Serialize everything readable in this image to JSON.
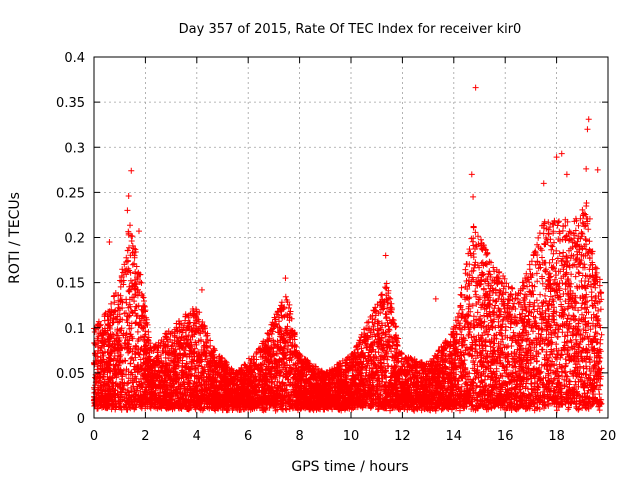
{
  "chart_data": {
    "type": "scatter",
    "title": "Day 357 of 2015, Rate Of TEC Index for receiver kir0",
    "xlabel": "GPS time / hours",
    "ylabel": "ROTI / TECUs",
    "xlim": [
      0,
      20
    ],
    "ylim": [
      0,
      0.4
    ],
    "xticks": [
      0,
      2,
      4,
      6,
      8,
      10,
      12,
      14,
      16,
      18,
      20
    ],
    "yticks": [
      0,
      0.05,
      0.1,
      0.15,
      0.2,
      0.25,
      0.3,
      0.35,
      0.4
    ],
    "ytick_labels": [
      "0",
      "0.05",
      "0.1",
      "0.15",
      "0.2",
      "0.25",
      "0.3",
      "0.35",
      "0.4"
    ],
    "grid": true,
    "marker": "+",
    "color": "#ff0000",
    "series": [
      {
        "name": "ROTI",
        "envelope_note": "dense scatter; typical upper envelope by hour",
        "upper_envelope": [
          {
            "x": 0.0,
            "y": 0.1
          },
          {
            "x": 0.5,
            "y": 0.12
          },
          {
            "x": 1.0,
            "y": 0.15
          },
          {
            "x": 1.4,
            "y": 0.22
          },
          {
            "x": 1.8,
            "y": 0.16
          },
          {
            "x": 2.2,
            "y": 0.08
          },
          {
            "x": 3.0,
            "y": 0.1
          },
          {
            "x": 4.0,
            "y": 0.13
          },
          {
            "x": 4.6,
            "y": 0.08
          },
          {
            "x": 5.5,
            "y": 0.05
          },
          {
            "x": 6.5,
            "y": 0.08
          },
          {
            "x": 7.5,
            "y": 0.14
          },
          {
            "x": 8.0,
            "y": 0.07
          },
          {
            "x": 9.0,
            "y": 0.05
          },
          {
            "x": 10.0,
            "y": 0.07
          },
          {
            "x": 11.4,
            "y": 0.15
          },
          {
            "x": 12.0,
            "y": 0.07
          },
          {
            "x": 13.0,
            "y": 0.06
          },
          {
            "x": 14.0,
            "y": 0.1
          },
          {
            "x": 14.8,
            "y": 0.22
          },
          {
            "x": 15.5,
            "y": 0.17
          },
          {
            "x": 16.5,
            "y": 0.14
          },
          {
            "x": 17.5,
            "y": 0.22
          },
          {
            "x": 18.5,
            "y": 0.22
          },
          {
            "x": 19.2,
            "y": 0.24
          },
          {
            "x": 19.6,
            "y": 0.16
          }
        ],
        "outliers": [
          {
            "x": 1.45,
            "y": 0.274
          },
          {
            "x": 1.35,
            "y": 0.246
          },
          {
            "x": 1.3,
            "y": 0.23
          },
          {
            "x": 1.75,
            "y": 0.207
          },
          {
            "x": 0.6,
            "y": 0.195
          },
          {
            "x": 14.85,
            "y": 0.366
          },
          {
            "x": 14.7,
            "y": 0.27
          },
          {
            "x": 14.75,
            "y": 0.245
          },
          {
            "x": 11.35,
            "y": 0.18
          },
          {
            "x": 13.3,
            "y": 0.132
          },
          {
            "x": 18.0,
            "y": 0.289
          },
          {
            "x": 18.2,
            "y": 0.293
          },
          {
            "x": 19.25,
            "y": 0.331
          },
          {
            "x": 19.2,
            "y": 0.32
          },
          {
            "x": 19.15,
            "y": 0.276
          },
          {
            "x": 19.6,
            "y": 0.275
          },
          {
            "x": 18.4,
            "y": 0.27
          },
          {
            "x": 17.5,
            "y": 0.26
          },
          {
            "x": 7.45,
            "y": 0.155
          },
          {
            "x": 4.2,
            "y": 0.142
          }
        ]
      }
    ]
  }
}
